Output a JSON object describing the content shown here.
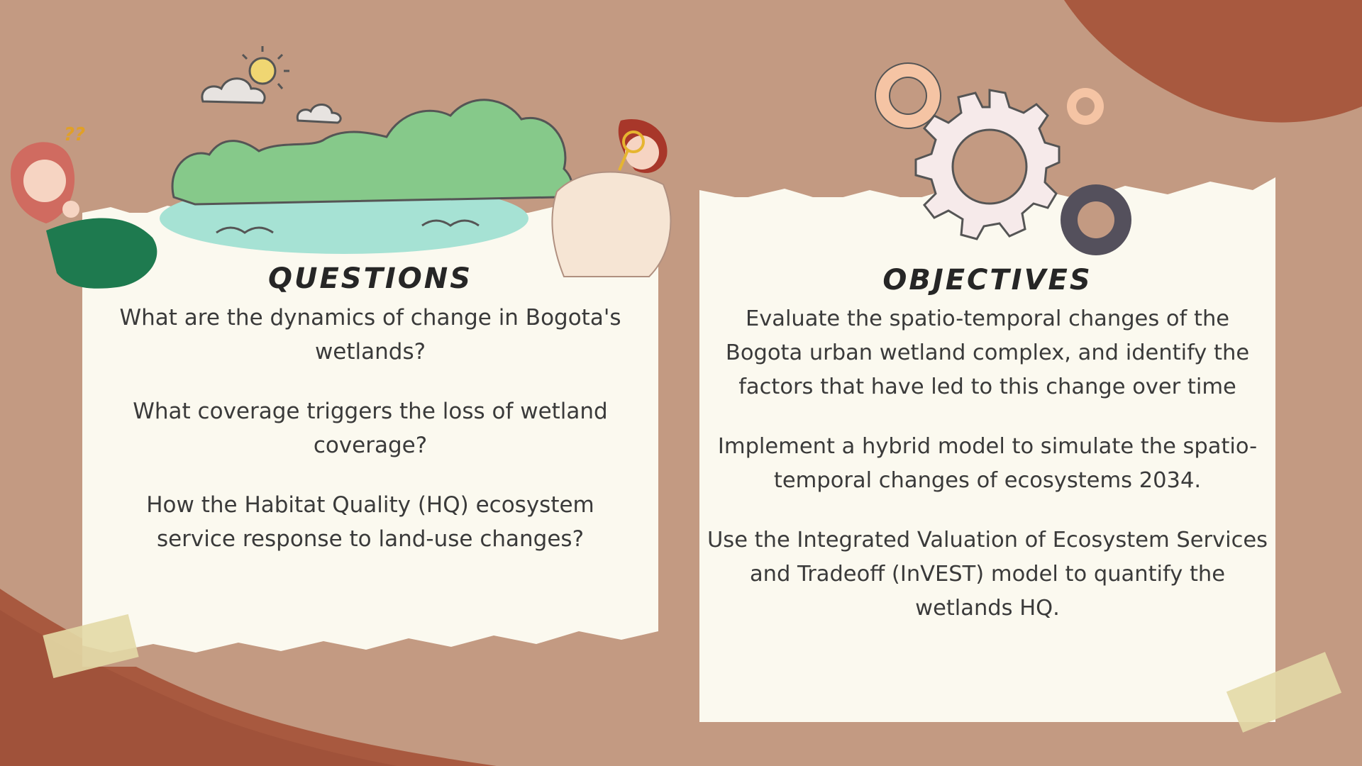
{
  "questions": {
    "heading": "QUESTIONS",
    "items": [
      "What are the dynamics of change in Bogota's wetlands?",
      "What coverage triggers the loss of wetland coverage?",
      "How the Habitat Quality (HQ) ecosystem service response to land-use changes?"
    ]
  },
  "objectives": {
    "heading": "OBJECTIVES",
    "items": [
      "Evaluate the spatio-temporal changes of the Bogota urban wetland complex, and identify the factors that have led to this change over time",
      "Implement a hybrid model to simulate the spatio-temporal changes of ecosystems 2034.",
      "Use the Integrated Valuation of Ecosystem Services and Tradeoff (InVEST) model to quantify the wetlands HQ."
    ]
  },
  "decor": {
    "question_marks": "??"
  },
  "colors": {
    "background": "#c39a82",
    "card": "#fbf9ef",
    "copper": "#a8593f",
    "text": "#3a3a3a",
    "heading": "#262626",
    "tape": "#e3d9a6",
    "gear_peach": "#f5c4a4",
    "gear_dark": "#54505c"
  }
}
